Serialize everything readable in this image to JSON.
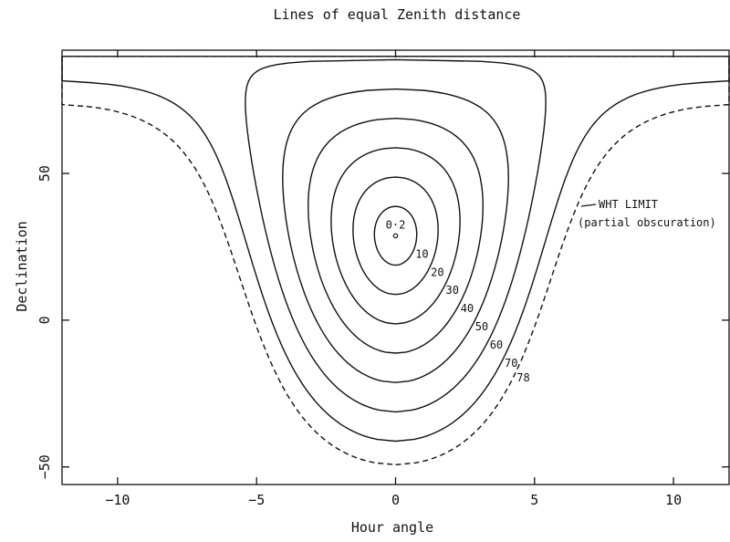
{
  "chart_data": {
    "type": "line",
    "title": "Lines of equal Zenith distance",
    "xlabel": "Hour angle",
    "ylabel": "Declination",
    "xlim": [
      -12,
      12
    ],
    "ylim": [
      -56,
      92
    ],
    "xticks": [
      -10,
      -5,
      0,
      5,
      10
    ],
    "yticks": [
      -50,
      0,
      50
    ],
    "tick_labels": {
      "x": [
        "−10",
        "−5",
        "0",
        "5",
        "10"
      ],
      "y": [
        "−50",
        "0",
        "50"
      ]
    },
    "grid": false,
    "observatory_latitude": 28.76,
    "center_label": "0·2",
    "contours": [
      {
        "zenith_distance": 0.2,
        "label": "",
        "style": "solid"
      },
      {
        "zenith_distance": 10,
        "label": "10",
        "style": "solid"
      },
      {
        "zenith_distance": 20,
        "label": "20",
        "style": "solid"
      },
      {
        "zenith_distance": 30,
        "label": "30",
        "style": "solid"
      },
      {
        "zenith_distance": 40,
        "label": "40",
        "style": "solid"
      },
      {
        "zenith_distance": 50,
        "label": "50",
        "style": "solid"
      },
      {
        "zenith_distance": 60,
        "label": "60",
        "style": "solid"
      },
      {
        "zenith_distance": 70,
        "label": "70",
        "style": "solid"
      },
      {
        "zenith_distance": 78,
        "label": "78",
        "style": "dashed"
      }
    ],
    "annotations": [
      {
        "text": "WHT LIMIT",
        "points_to": 78
      },
      {
        "text": "(partial obscuration)"
      }
    ]
  }
}
